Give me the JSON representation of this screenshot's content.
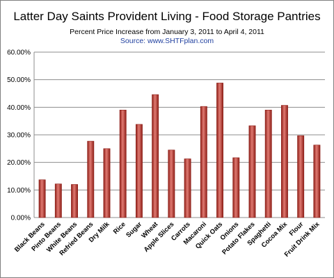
{
  "chart_data": {
    "type": "bar",
    "title": "Latter Day Saints Provident Living - Food Storage Pantries",
    "subtitle": "Percent Price Increase from January 3, 2011 to April 4, 2011",
    "source": "Source: www.SHTFplan.com",
    "xlabel": "",
    "ylabel": "",
    "ylim": [
      0,
      0.6
    ],
    "yticks": [
      "0.00%",
      "10.00%",
      "20.00%",
      "30.00%",
      "40.00%",
      "50.00%",
      "60.00%"
    ],
    "grid": true,
    "categories": [
      "Black Beans",
      "Pinto Beans",
      "White Beans",
      "Refried Beans",
      "Dry Milk",
      "Rice",
      "Sugar",
      "Wheat",
      "Apple Slices",
      "Carrots",
      "Macaroni",
      "Quick Oats",
      "Onions",
      "Potato Flakes",
      "Spaghetti",
      "Cocoa Mix",
      "Flour",
      "Fruit Drink Mix"
    ],
    "values": [
      0.137,
      0.122,
      0.12,
      0.277,
      0.25,
      0.39,
      0.338,
      0.446,
      0.245,
      0.213,
      0.403,
      0.488,
      0.217,
      0.333,
      0.39,
      0.407,
      0.297,
      0.263
    ],
    "bar_color": "#c0392b",
    "bar_color_light": "#e07a72",
    "bar_color_dark": "#8e1f18"
  }
}
